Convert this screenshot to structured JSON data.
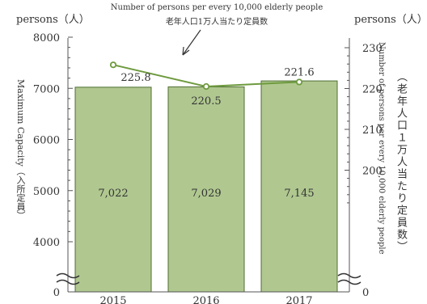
{
  "chart_data": {
    "type": "bar+line",
    "categories": [
      "2015",
      "2016",
      "2017"
    ],
    "series": [
      {
        "values": [
          7022,
          7029,
          7145
        ],
        "axis": "left",
        "color": "#b0c890"
      },
      {
        "values": [
          225.8,
          220.5,
          221.6
        ],
        "axis": "right",
        "color": "#6e9a3e"
      }
    ],
    "bar_labels": [
      "7,022",
      "7,029",
      "7,145"
    ],
    "line_labels": [
      "225.8",
      "220.5",
      "221.6"
    ],
    "left_axis": {
      "unit": "persons（人）",
      "label": "Maximum Capacity（入所定員）",
      "ticks": [
        "0",
        "4000",
        "5000",
        "6000",
        "7000",
        "8000"
      ],
      "broken": true
    },
    "right_axis": {
      "unit": "persons（人）",
      "label": "Number of persons per every 10,000 elderly people",
      "label_ja": "（老年人口１万人当たり定員数）",
      "ticks": [
        "0",
        "200",
        "210",
        "220",
        "230"
      ],
      "broken": true
    },
    "annotation": {
      "en": "Number of persons per every 10,000 elderly people",
      "ja": "老年人口1万人当たり定員数"
    },
    "grid": false,
    "legend": "none"
  }
}
